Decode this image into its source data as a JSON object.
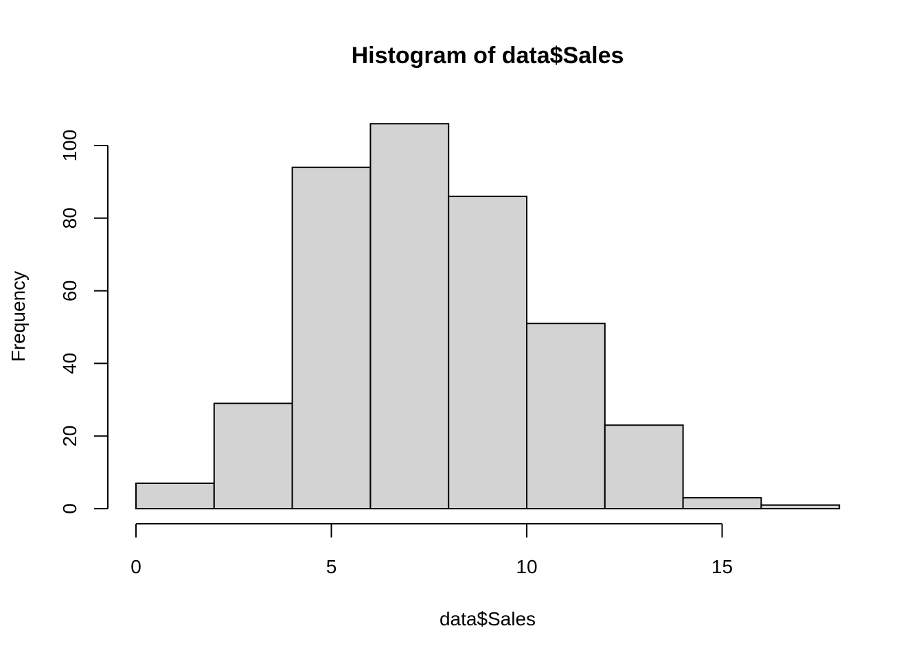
{
  "chart_data": {
    "type": "bar",
    "title": "Histogram of data$Sales",
    "xlabel": "data$Sales",
    "ylabel": "Frequency",
    "bin_edges": [
      0,
      2,
      4,
      6,
      8,
      10,
      12,
      14,
      16,
      18
    ],
    "values": [
      7,
      29,
      94,
      106,
      86,
      51,
      23,
      3,
      1
    ],
    "x_ticks": [
      0,
      5,
      10,
      15
    ],
    "y_ticks": [
      0,
      20,
      40,
      60,
      80,
      100
    ],
    "x_tick_labels": [
      "0",
      "5",
      "10",
      "15"
    ],
    "y_tick_labels": [
      "0",
      "20",
      "40",
      "60",
      "80",
      "100"
    ],
    "bar_color": "#d3d3d3",
    "grid": false
  }
}
